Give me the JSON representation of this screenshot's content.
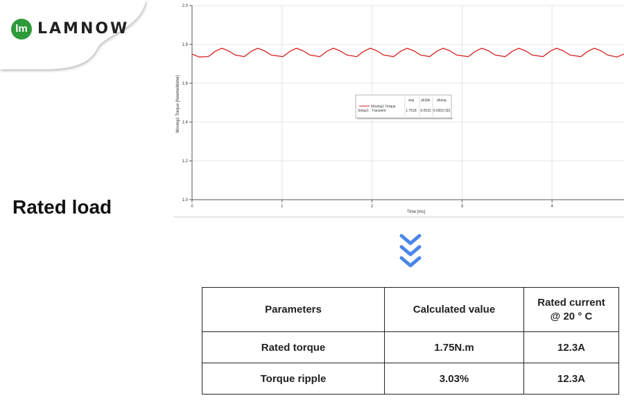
{
  "logo": {
    "icon": "lm",
    "text": "LAMNOW"
  },
  "heading": "Rated load",
  "chart_data": {
    "type": "line",
    "ylabel": "Moving1 Torque [NewtonMeter]",
    "xlabel": "Time [ms]",
    "xlim": [
      0,
      4.8
    ],
    "xticks": [
      0,
      1,
      2,
      3,
      4
    ],
    "ylim": [
      1.0,
      2.0
    ],
    "yticks": [
      {
        "value": 1.0,
        "label": "1.0"
      },
      1.2,
      1.4,
      1.6,
      1.8,
      {
        "value": 2.0,
        "label": "2.0"
      }
    ],
    "grid": true,
    "x": [
      0,
      0.08,
      0.18,
      0.26,
      0.33,
      0.4,
      0.48,
      0.58,
      0.66,
      0.73,
      0.8,
      0.88,
      1.01,
      1.09,
      1.16,
      1.23,
      1.31,
      1.42,
      1.5,
      1.57,
      1.64,
      1.72,
      1.83,
      1.91,
      1.98,
      2.05,
      2.13,
      2.24,
      2.32,
      2.39,
      2.46,
      2.54,
      2.64,
      2.72,
      2.79,
      2.86,
      2.94,
      3.07,
      3.15,
      3.22,
      3.29,
      3.37,
      3.48,
      3.56,
      3.63,
      3.7,
      3.78,
      3.9,
      3.98,
      4.05,
      4.12,
      4.2,
      4.32,
      4.4,
      4.47,
      4.54,
      4.62,
      4.72,
      4.8
    ],
    "series": [
      {
        "name": "Moving1.Torque",
        "color": "#d42020",
        "values": [
          1.75,
          1.735,
          1.737,
          1.765,
          1.78,
          1.768,
          1.745,
          1.737,
          1.765,
          1.78,
          1.768,
          1.745,
          1.737,
          1.765,
          1.78,
          1.768,
          1.745,
          1.737,
          1.765,
          1.78,
          1.768,
          1.745,
          1.737,
          1.765,
          1.78,
          1.768,
          1.745,
          1.737,
          1.765,
          1.78,
          1.768,
          1.745,
          1.737,
          1.765,
          1.78,
          1.768,
          1.745,
          1.737,
          1.765,
          1.78,
          1.768,
          1.745,
          1.737,
          1.765,
          1.78,
          1.768,
          1.745,
          1.737,
          1.765,
          1.78,
          1.768,
          1.745,
          1.737,
          1.765,
          1.78,
          1.768,
          1.745,
          1.735,
          1.75
        ]
      }
    ],
    "stats": {
      "columns": [
        "avg",
        "pk2pk",
        "pkavg"
      ],
      "row_label": "Setup1 : Transient",
      "values": [
        1.7518,
        0.0531,
        "0.0303 (SI)"
      ]
    }
  },
  "table": {
    "header": [
      "Parameters",
      "Calculated value",
      "Rated current @ 20 ° C"
    ],
    "rows": [
      [
        "Rated torque",
        "1.75N.m",
        "12.3A"
      ],
      [
        "Torque ripple",
        "3.03%",
        "12.3A"
      ]
    ]
  }
}
